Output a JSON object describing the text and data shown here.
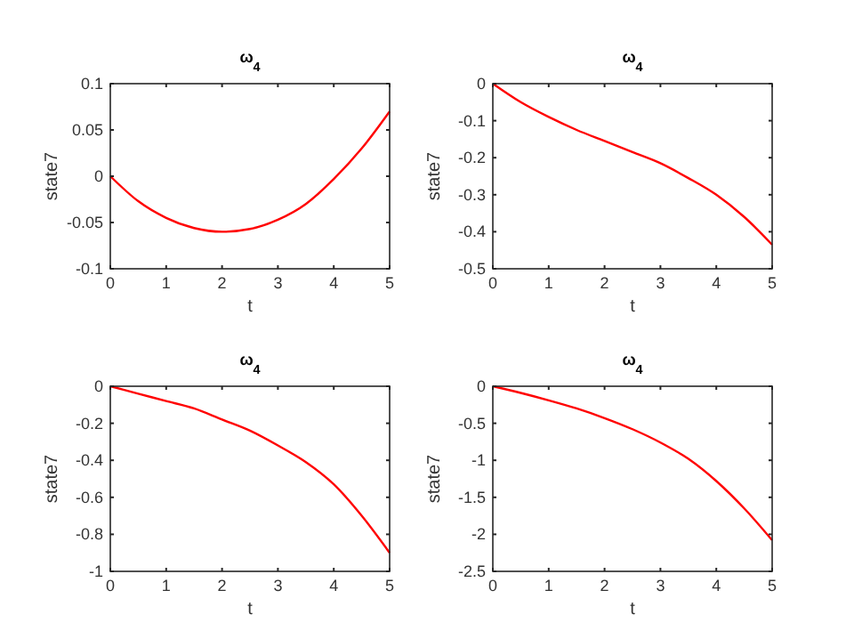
{
  "chart_data": [
    {
      "type": "line",
      "title": "ω$_{4}$",
      "xlabel": "t",
      "ylabel": "state7",
      "x": [
        0,
        0.5,
        1,
        1.5,
        2,
        2.5,
        3,
        3.5,
        4,
        4.5,
        5
      ],
      "xlim": [
        0,
        5
      ],
      "xticks": [
        0,
        1,
        2,
        3,
        4,
        5
      ],
      "ylim": [
        -0.1,
        0.1
      ],
      "yticks": [
        -0.1,
        -0.05,
        0,
        0.05,
        0.1
      ],
      "grid": false,
      "series": [
        {
          "color": "#ff0000",
          "values": [
            0,
            -0.027,
            -0.045,
            -0.056,
            -0.06,
            -0.057,
            -0.047,
            -0.03,
            -0.003,
            0.03,
            0.07
          ]
        }
      ]
    },
    {
      "type": "line",
      "title": "ω$_{4}$",
      "xlabel": "t",
      "ylabel": "state7",
      "x": [
        0,
        0.5,
        1,
        1.5,
        2,
        2.5,
        3,
        3.5,
        4,
        4.5,
        5
      ],
      "xlim": [
        0,
        5
      ],
      "xticks": [
        0,
        1,
        2,
        3,
        4,
        5
      ],
      "ylim": [
        -0.5,
        0
      ],
      "yticks": [
        -0.5,
        -0.4,
        -0.3,
        -0.2,
        -0.1,
        0
      ],
      "grid": false,
      "series": [
        {
          "color": "#ff0000",
          "values": [
            0,
            -0.05,
            -0.09,
            -0.125,
            -0.155,
            -0.185,
            -0.215,
            -0.255,
            -0.3,
            -0.36,
            -0.435
          ]
        }
      ]
    },
    {
      "type": "line",
      "title": "ω$_{4}$",
      "xlabel": "t",
      "ylabel": "state7",
      "x": [
        0,
        0.5,
        1,
        1.5,
        2,
        2.5,
        3,
        3.5,
        4,
        4.5,
        5
      ],
      "xlim": [
        0,
        5
      ],
      "xticks": [
        0,
        1,
        2,
        3,
        4,
        5
      ],
      "ylim": [
        -1,
        0
      ],
      "yticks": [
        -1,
        -0.8,
        -0.6,
        -0.4,
        -0.2,
        0
      ],
      "grid": false,
      "series": [
        {
          "color": "#ff0000",
          "values": [
            0,
            -0.04,
            -0.08,
            -0.12,
            -0.18,
            -0.24,
            -0.32,
            -0.41,
            -0.53,
            -0.7,
            -0.9
          ]
        }
      ]
    },
    {
      "type": "line",
      "title": "ω$_{4}$",
      "xlabel": "t",
      "ylabel": "state7",
      "x": [
        0,
        0.5,
        1,
        1.5,
        2,
        2.5,
        3,
        3.5,
        4,
        4.5,
        5
      ],
      "xlim": [
        0,
        5
      ],
      "xticks": [
        0,
        1,
        2,
        3,
        4,
        5
      ],
      "ylim": [
        -2.5,
        0
      ],
      "yticks": [
        -2.5,
        -2,
        -1.5,
        -1,
        -0.5,
        0
      ],
      "grid": false,
      "series": [
        {
          "color": "#ff0000",
          "values": [
            0,
            -0.09,
            -0.19,
            -0.3,
            -0.43,
            -0.58,
            -0.76,
            -0.98,
            -1.28,
            -1.65,
            -2.08
          ]
        }
      ]
    }
  ]
}
